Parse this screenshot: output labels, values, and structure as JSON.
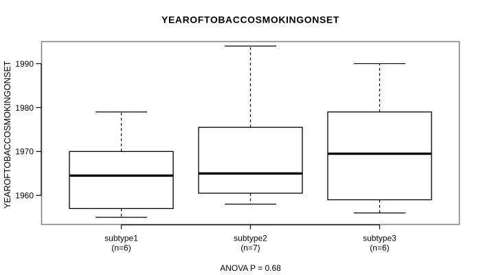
{
  "title": "YEAROFTOBACCOSMOKINGONSET",
  "chart_data": {
    "type": "boxplot",
    "title": "YEAROFTOBACCOSMOKINGONSET",
    "ylabel": "YEAROFTOBACCOSMOKINGONSET",
    "xlabel": "",
    "categories": [
      "subtype1",
      "subtype2",
      "subtype3"
    ],
    "category_sublabels": [
      "(n=6)",
      "(n=7)",
      "(n=6)"
    ],
    "series": [
      {
        "name": "subtype1",
        "n": 6,
        "whisker_low": 1955,
        "q1": 1957,
        "median": 1964.5,
        "q3": 1970,
        "whisker_high": 1979,
        "outliers": []
      },
      {
        "name": "subtype2",
        "n": 7,
        "whisker_low": 1958,
        "q1": 1960.5,
        "median": 1965,
        "q3": 1975.5,
        "whisker_high": 1994,
        "outliers": []
      },
      {
        "name": "subtype3",
        "n": 6,
        "whisker_low": 1956,
        "q1": 1959,
        "median": 1969.5,
        "q3": 1979,
        "whisker_high": 1990,
        "outliers": []
      }
    ],
    "yticks": [
      1960,
      1970,
      1980,
      1990
    ],
    "ylim": [
      1953.3,
      1995.1
    ],
    "grid": false,
    "legend": null,
    "annotation": "ANOVA P = 0.68"
  },
  "colors": {
    "background": "#ffffff",
    "plot_border": "#848484",
    "axis": "#000000",
    "box_border": "#000000",
    "box_fill": "#ffffff",
    "median": "#000000",
    "whisker": "#000000",
    "text": "#000000"
  }
}
